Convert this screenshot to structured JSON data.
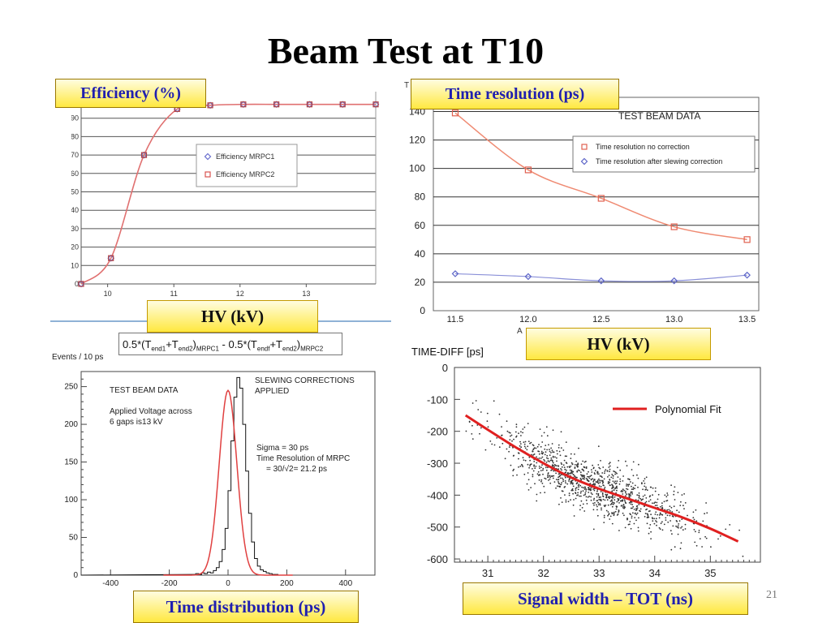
{
  "slide": {
    "title": "Beam Test at T10",
    "page_number": "21"
  },
  "callouts": {
    "efficiency": "Efficiency (%)",
    "hv_left": "HV (kV)",
    "time_resolution": "Time resolution (ps)",
    "hv_right": "HV (kV)",
    "time_distribution": "Time distribution (ps)",
    "signal_width": "Signal width – TOT (ns)"
  },
  "formula": {
    "p1": "0.5*(T",
    "s1": "end1",
    "p2": "+T",
    "s2": "end2",
    "p3": ")",
    "s3": "MRPC1",
    "p4": " - 0.5*(T",
    "s4": "endf",
    "p5": "+T",
    "s5": "end2",
    "p6": ")",
    "s6": "MRPC2"
  },
  "colors": {
    "mrpc1": "#6a6fcf",
    "mrpc2": "#d9534f",
    "callout_text_blue": "#1f1fb0",
    "fit_red": "#e02020"
  },
  "chart_data": [
    {
      "type": "line",
      "name": "efficiency_vs_hv",
      "x": [
        9.6,
        10.05,
        10.55,
        11.05,
        11.55,
        12.05,
        12.55,
        13.05,
        13.55,
        14.05
      ],
      "series": [
        {
          "name": "Efficiency MRPC1",
          "values": [
            0,
            14,
            70,
            95,
            97,
            97.5,
            97.5,
            97.5,
            97.5,
            97.5
          ],
          "marker": "diamond"
        },
        {
          "name": "Efficiency MRPC2",
          "values": [
            0,
            14,
            70,
            95,
            97,
            97.5,
            97.5,
            97.5,
            97.5,
            97.5
          ],
          "marker": "square"
        }
      ],
      "xticks": [
        "10",
        "11",
        "12",
        "13"
      ],
      "xtick_values": [
        10,
        11,
        12,
        13
      ],
      "yticks": [
        "0",
        "10",
        "20",
        "30",
        "40",
        "50",
        "60",
        "70",
        "80",
        "90"
      ],
      "ylim": [
        0,
        100
      ],
      "grid": "horizontal",
      "legend": "middle-right"
    },
    {
      "type": "line",
      "name": "time_resolution_vs_hv",
      "title": "TEST BEAM DATA",
      "x": [
        11.5,
        12.0,
        12.5,
        13.0,
        13.5
      ],
      "series": [
        {
          "name": "Time resolution    no correction",
          "values": [
            139,
            99,
            79,
            59,
            50
          ],
          "marker": "square"
        },
        {
          "name": "Time resolution after slewing correction",
          "values": [
            26,
            24,
            21,
            21,
            25
          ],
          "marker": "diamond"
        }
      ],
      "xticks": [
        "11.5",
        "12.0",
        "12.5",
        "13.0",
        "13.5"
      ],
      "yticks": [
        "0",
        "20",
        "40",
        "60",
        "80",
        "100",
        "120",
        "140"
      ],
      "ylim": [
        0,
        150
      ],
      "grid": "horizontal",
      "legend": "top-right",
      "axis_fragments": {
        "y": "T",
        "x": "A"
      }
    },
    {
      "type": "histogram",
      "name": "time_distribution",
      "ylabel": "Events / 10 ps",
      "bin_width": 10,
      "bin_start": -120,
      "counts": [
        1,
        2,
        1,
        3,
        2,
        4,
        3,
        6,
        10,
        18,
        34,
        62,
        112,
        178,
        236,
        262,
        248,
        200,
        138,
        82,
        44,
        22,
        12,
        7,
        5,
        3,
        2,
        1,
        1
      ],
      "gauss_fit": {
        "mean": 0,
        "sigma": 30,
        "amplitude": 245
      },
      "xticks": [
        "-400",
        "-200",
        "0",
        "200",
        "400"
      ],
      "xtick_values": [
        -400,
        -200,
        0,
        200,
        400
      ],
      "yticks": [
        "0",
        "50",
        "100",
        "150",
        "200",
        "250"
      ],
      "ylim": [
        0,
        270
      ],
      "xlim": [
        -500,
        500
      ],
      "annotations": {
        "test_beam": "TEST BEAM DATA",
        "applied_1": "Applied Voltage across",
        "applied_2": "6 gaps is13 kV",
        "slewing_1": "SLEWING CORRECTIONS",
        "slewing_2": "APPLIED",
        "sigma": "Sigma = 30 ps",
        "timeres": "Time Resolution of MRPC",
        "sqrt": "= 30/√2= 21.2 ps"
      }
    },
    {
      "type": "scatter",
      "name": "time_diff_vs_tot",
      "ylabel": "TIME-DIFF [ps]",
      "fit": {
        "name": "Polynomial Fit",
        "x": [
          30.6,
          31.0,
          31.5,
          32.0,
          32.5,
          33.0,
          33.5,
          34.0,
          34.5,
          35.0,
          35.5
        ],
        "y": [
          -150,
          -195,
          -250,
          -300,
          -345,
          -380,
          -410,
          -440,
          -470,
          -505,
          -545
        ]
      },
      "point_count": 1100,
      "xticks": [
        "31",
        "32",
        "33",
        "34",
        "35"
      ],
      "xtick_values": [
        31,
        32,
        33,
        34,
        35
      ],
      "yticks": [
        "0",
        "-100",
        "-200",
        "-300",
        "-400",
        "-500",
        "-600"
      ],
      "ytick_values": [
        0,
        -100,
        -200,
        -300,
        -400,
        -500,
        -600
      ],
      "xlim": [
        30.4,
        35.9
      ],
      "ylim": [
        -610,
        0
      ]
    }
  ]
}
